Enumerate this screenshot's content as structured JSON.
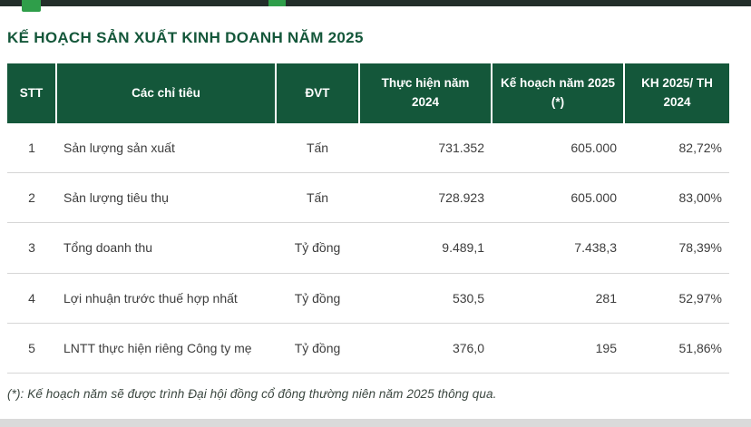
{
  "title": "KẾ HOẠCH SẢN XUẤT KINH DOANH NĂM 2025",
  "table": {
    "columns": [
      "STT",
      "Các chỉ tiêu",
      "ĐVT",
      "Thực hiện năm 2024",
      "Kế hoạch năm 2025 (*)",
      "KH 2025/ TH 2024"
    ],
    "rows": [
      {
        "stt": "1",
        "indicator": "Sản lượng sản xuất",
        "unit": "Tấn",
        "actual_2024": "731.352",
        "plan_2025": "605.000",
        "ratio": "82,72%"
      },
      {
        "stt": "2",
        "indicator": "Sản lượng tiêu thụ",
        "unit": "Tấn",
        "actual_2024": "728.923",
        "plan_2025": "605.000",
        "ratio": "83,00%"
      },
      {
        "stt": "3",
        "indicator": "Tổng doanh thu",
        "unit": "Tỷ đồng",
        "actual_2024": "9.489,1",
        "plan_2025": "7.438,3",
        "ratio": "78,39%"
      },
      {
        "stt": "4",
        "indicator": "Lợi nhuận trước thuế hợp nhất",
        "unit": "Tỷ đồng",
        "actual_2024": "530,5",
        "plan_2025": "281",
        "ratio": "52,97%"
      },
      {
        "stt": "5",
        "indicator": "LNTT thực hiện riêng Công ty mẹ",
        "unit": "Tỷ đồng",
        "actual_2024": "376,0",
        "plan_2025": "195",
        "ratio": "51,86%"
      }
    ]
  },
  "footnote": "(*): Kế hoạch năm sẽ được trình Đại hội đồng cổ đông thường niên năm 2025 thông qua.",
  "colors": {
    "header_bg": "#14573A",
    "title_text": "#14573A",
    "accent_green": "#2F9E4A",
    "topbar_bg": "#232E2A",
    "row_divider": "#D6D6D6",
    "bottom_strip": "#DADADA"
  }
}
